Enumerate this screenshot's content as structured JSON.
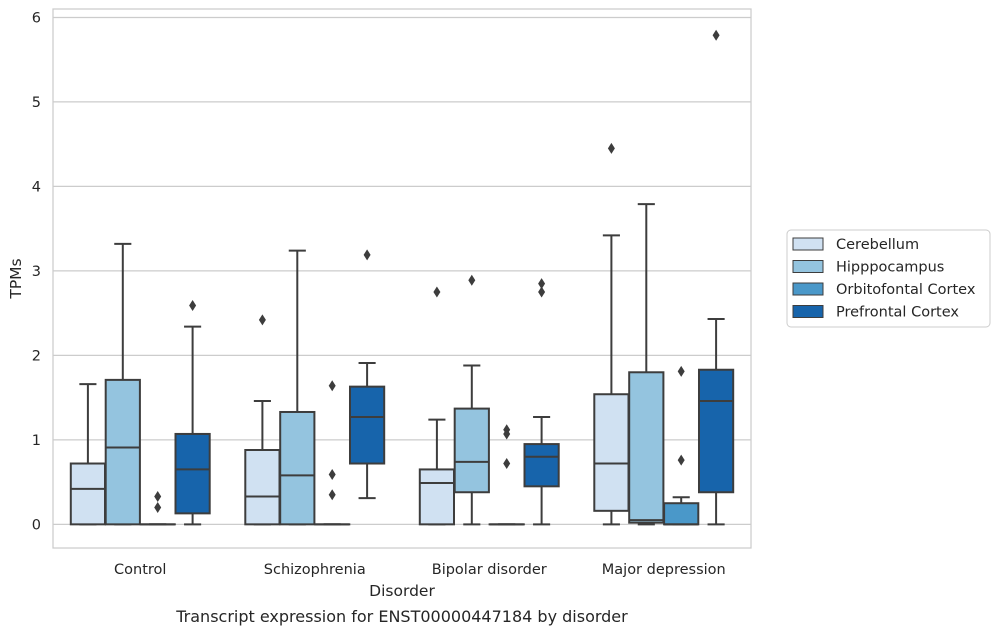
{
  "chart_data": {
    "type": "box",
    "title": "",
    "caption": "Transcript expression for ENST00000447184 by disorder",
    "xlabel": "Disorder",
    "ylabel": "TPMs",
    "ylim": [
      -0.28,
      6.1
    ],
    "yticks": [
      0,
      1,
      2,
      3,
      4,
      5,
      6
    ],
    "grid": true,
    "legend_position": "right",
    "categories": [
      "Control",
      "Schizophrenia",
      "Bipolar disorder",
      "Major depression"
    ],
    "series": [
      {
        "name": "Cerebellum",
        "color": "#d0e1f2",
        "boxes": [
          {
            "whislo": 0.0,
            "q1": 0.0,
            "med": 0.42,
            "q3": 0.72,
            "whishi": 1.66,
            "fliers": []
          },
          {
            "whislo": 0.0,
            "q1": 0.0,
            "med": 0.33,
            "q3": 0.88,
            "whishi": 1.46,
            "fliers": [
              2.42
            ]
          },
          {
            "whislo": 0.0,
            "q1": 0.0,
            "med": 0.49,
            "q3": 0.65,
            "whishi": 1.24,
            "fliers": [
              2.75
            ]
          },
          {
            "whislo": 0.0,
            "q1": 0.16,
            "med": 0.72,
            "q3": 1.54,
            "whishi": 3.42,
            "fliers": [
              4.45
            ]
          }
        ]
      },
      {
        "name": "Hipppocampus",
        "color": "#94c4df",
        "boxes": [
          {
            "whislo": 0.0,
            "q1": 0.0,
            "med": 0.91,
            "q3": 1.71,
            "whishi": 3.32,
            "fliers": []
          },
          {
            "whislo": 0.0,
            "q1": 0.0,
            "med": 0.58,
            "q3": 1.33,
            "whishi": 3.24,
            "fliers": []
          },
          {
            "whislo": 0.0,
            "q1": 0.38,
            "med": 0.74,
            "q3": 1.37,
            "whishi": 1.88,
            "fliers": [
              2.89
            ]
          },
          {
            "whislo": 0.0,
            "q1": 0.02,
            "med": 0.05,
            "q3": 1.8,
            "whishi": 3.79,
            "fliers": []
          }
        ]
      },
      {
        "name": "Orbitofontal Cortex",
        "color": "#4a98c9",
        "boxes": [
          {
            "whislo": 0.0,
            "q1": 0.0,
            "med": 0.0,
            "q3": 0.0,
            "whishi": 0.0,
            "fliers": [
              0.2,
              0.33
            ]
          },
          {
            "whislo": 0.0,
            "q1": 0.0,
            "med": 0.0,
            "q3": 0.0,
            "whishi": 0.0,
            "fliers": [
              0.35,
              0.59,
              1.64
            ]
          },
          {
            "whislo": 0.0,
            "q1": 0.0,
            "med": 0.0,
            "q3": 0.0,
            "whishi": 0.0,
            "fliers": [
              0.72,
              1.07,
              1.12
            ]
          },
          {
            "whislo": 0.0,
            "q1": 0.0,
            "med": 0.0,
            "q3": 0.25,
            "whishi": 0.32,
            "fliers": [
              0.76,
              1.81
            ]
          }
        ]
      },
      {
        "name": "Prefrontal Cortex",
        "color": "#1764ab",
        "boxes": [
          {
            "whislo": 0.0,
            "q1": 0.13,
            "med": 0.65,
            "q3": 1.07,
            "whishi": 2.34,
            "fliers": [
              2.59
            ]
          },
          {
            "whislo": 0.31,
            "q1": 0.72,
            "med": 1.27,
            "q3": 1.63,
            "whishi": 1.91,
            "fliers": [
              3.19
            ]
          },
          {
            "whislo": 0.0,
            "q1": 0.45,
            "med": 0.8,
            "q3": 0.95,
            "whishi": 1.27,
            "fliers": [
              2.75,
              2.85
            ]
          },
          {
            "whislo": 0.0,
            "q1": 0.38,
            "med": 1.46,
            "q3": 1.83,
            "whishi": 2.43,
            "fliers": [
              5.79
            ]
          }
        ]
      }
    ]
  }
}
